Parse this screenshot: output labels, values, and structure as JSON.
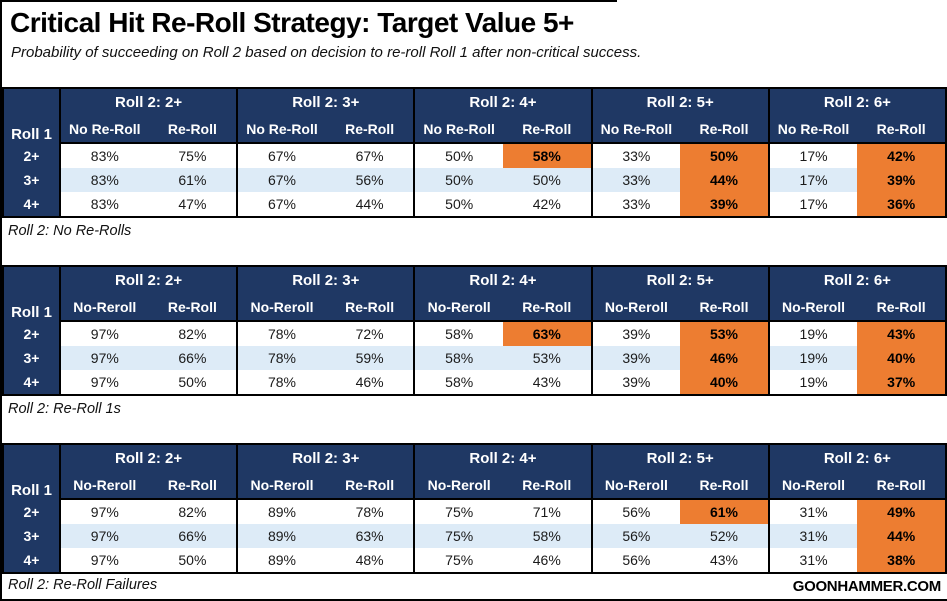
{
  "page": {
    "title": "Critical Hit Re-Roll Strategy: Target Value 5+",
    "subtitle": "Probability of succeeding on Roll 2 based on decision to re-roll Roll 1 after non-critical success.",
    "brand": "GOONHAMMER.COM"
  },
  "colors": {
    "navy": "#1F3864",
    "orange": "#ED7D31",
    "stripe": "#DDEBF7",
    "border": "#000000",
    "background": "#FFFFFF"
  },
  "chart_data": [
    {
      "type": "table",
      "title": "Roll 2: No Re-Rolls",
      "row_header": "Roll 1",
      "col_groups": [
        "Roll 2: 2+",
        "Roll 2: 3+",
        "Roll 2: 4+",
        "Roll 2: 5+",
        "Roll 2: 6+"
      ],
      "sub_headers": [
        "No Re-Roll",
        "Re-Roll"
      ],
      "rows": [
        {
          "label": "2+",
          "values": [
            "83%",
            "75%",
            "67%",
            "67%",
            "50%",
            "58%",
            "33%",
            "50%",
            "17%",
            "42%"
          ],
          "highlighted": [
            5,
            7,
            9
          ]
        },
        {
          "label": "3+",
          "values": [
            "83%",
            "61%",
            "67%",
            "56%",
            "50%",
            "50%",
            "33%",
            "44%",
            "17%",
            "39%"
          ],
          "highlighted": [
            7,
            9
          ]
        },
        {
          "label": "4+",
          "values": [
            "83%",
            "47%",
            "67%",
            "44%",
            "50%",
            "42%",
            "33%",
            "39%",
            "17%",
            "36%"
          ],
          "highlighted": [
            7,
            9
          ]
        }
      ]
    },
    {
      "type": "table",
      "title": "Roll 2: Re-Roll 1s",
      "row_header": "Roll 1",
      "col_groups": [
        "Roll 2: 2+",
        "Roll 2: 3+",
        "Roll 2: 4+",
        "Roll 2: 5+",
        "Roll 2: 6+"
      ],
      "sub_headers": [
        "No-Reroll",
        "Re-Roll"
      ],
      "rows": [
        {
          "label": "2+",
          "values": [
            "97%",
            "82%",
            "78%",
            "72%",
            "58%",
            "63%",
            "39%",
            "53%",
            "19%",
            "43%"
          ],
          "highlighted": [
            5,
            7,
            9
          ]
        },
        {
          "label": "3+",
          "values": [
            "97%",
            "66%",
            "78%",
            "59%",
            "58%",
            "53%",
            "39%",
            "46%",
            "19%",
            "40%"
          ],
          "highlighted": [
            7,
            9
          ]
        },
        {
          "label": "4+",
          "values": [
            "97%",
            "50%",
            "78%",
            "46%",
            "58%",
            "43%",
            "39%",
            "40%",
            "19%",
            "37%"
          ],
          "highlighted": [
            7,
            9
          ]
        }
      ]
    },
    {
      "type": "table",
      "title": "Roll 2: Re-Roll Failures",
      "row_header": "Roll 1",
      "col_groups": [
        "Roll 2: 2+",
        "Roll 2: 3+",
        "Roll 2: 4+",
        "Roll 2: 5+",
        "Roll 2: 6+"
      ],
      "sub_headers": [
        "No-Reroll",
        "Re-Roll"
      ],
      "rows": [
        {
          "label": "2+",
          "values": [
            "97%",
            "82%",
            "89%",
            "78%",
            "75%",
            "71%",
            "56%",
            "61%",
            "31%",
            "49%"
          ],
          "highlighted": [
            7,
            9
          ]
        },
        {
          "label": "3+",
          "values": [
            "97%",
            "66%",
            "89%",
            "63%",
            "75%",
            "58%",
            "56%",
            "52%",
            "31%",
            "44%"
          ],
          "highlighted": [
            9
          ]
        },
        {
          "label": "4+",
          "values": [
            "97%",
            "50%",
            "89%",
            "48%",
            "75%",
            "46%",
            "56%",
            "43%",
            "31%",
            "38%"
          ],
          "highlighted": [
            9
          ]
        }
      ]
    }
  ]
}
